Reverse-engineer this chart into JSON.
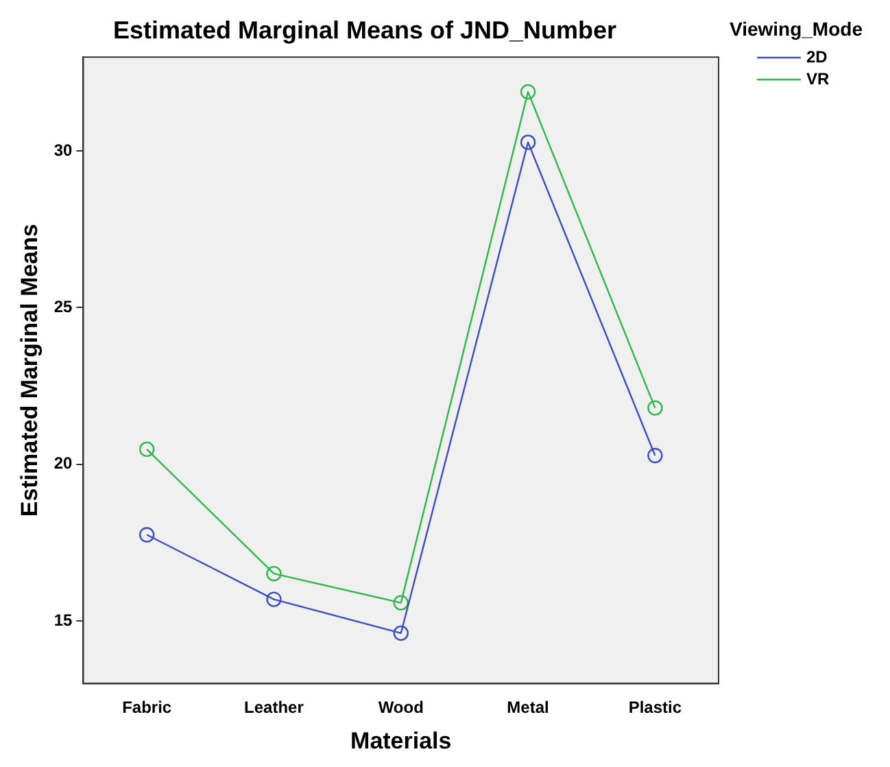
{
  "chart_data": {
    "type": "line",
    "title": "Estimated Marginal Means of JND_Number",
    "xlabel": "Materials",
    "ylabel": "Estimated Marginal Means",
    "legend_title": "Viewing_Mode",
    "categories": [
      "Fabric",
      "Leather",
      "Wood",
      "Metal",
      "Plastic"
    ],
    "series": [
      {
        "name": "2D",
        "color": "#3b4fc2",
        "values": [
          17.75,
          15.69,
          14.61,
          30.28,
          20.28
        ]
      },
      {
        "name": "VR",
        "color": "#2eb84b",
        "values": [
          20.48,
          16.51,
          15.58,
          31.89,
          21.8
        ]
      }
    ],
    "ylim": [
      13,
      33
    ],
    "yticks": [
      15,
      20,
      25,
      30
    ],
    "grid": false,
    "legend": "top right",
    "marker": "circle",
    "line_style": "solid"
  }
}
